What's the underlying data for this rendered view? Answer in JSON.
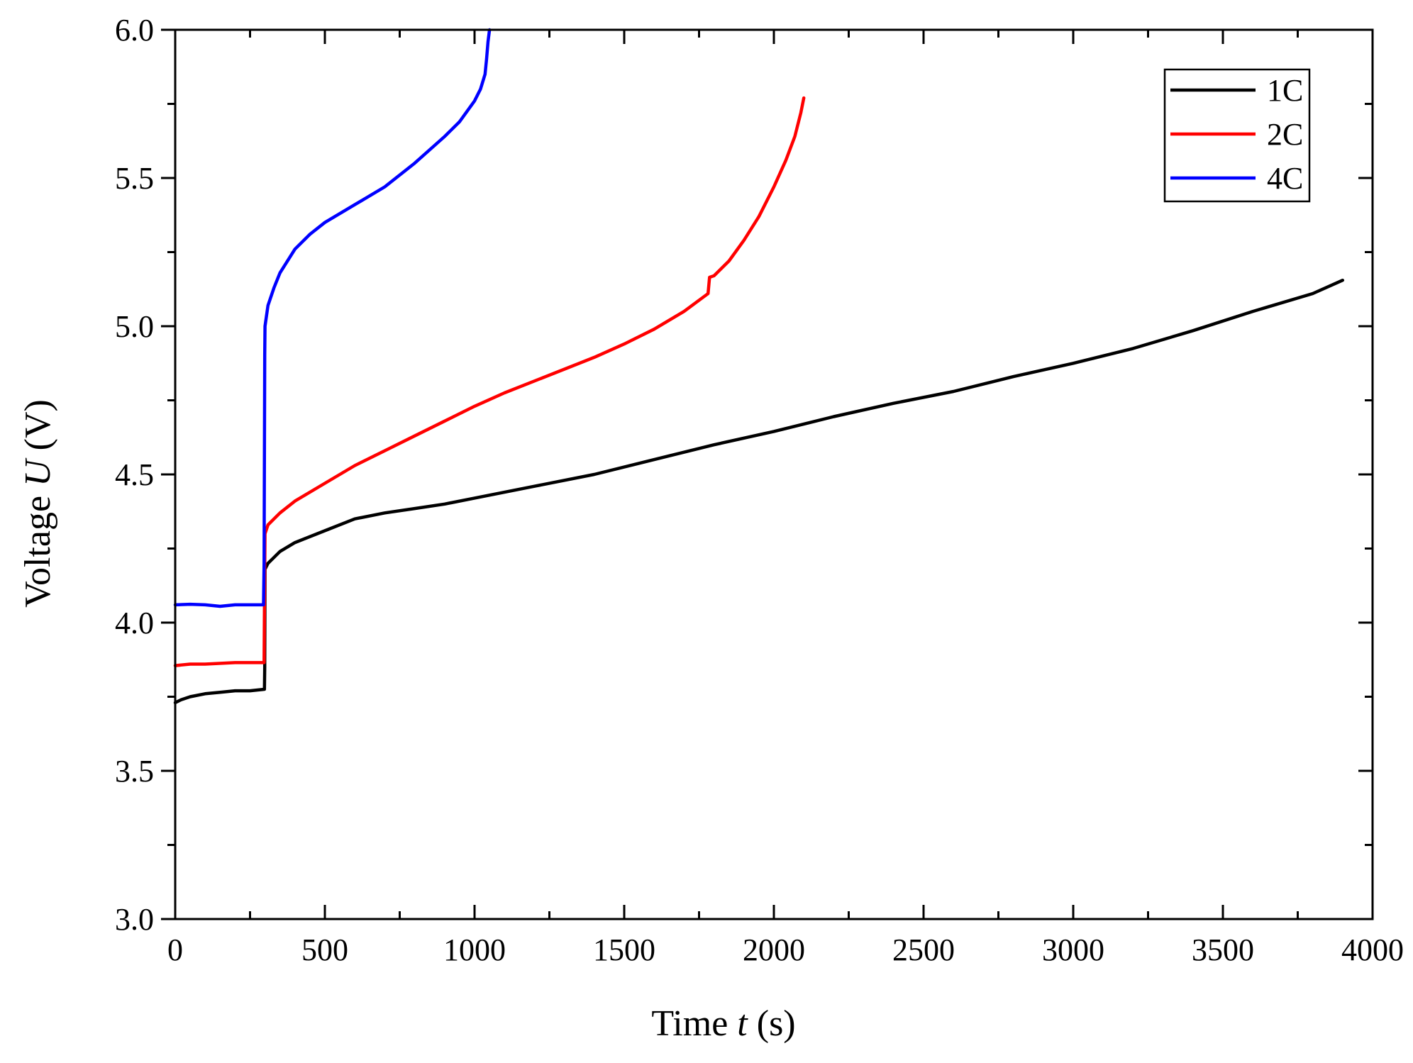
{
  "chart_data": {
    "type": "line",
    "title": "",
    "xlabel": {
      "prefix": "Time ",
      "var": "t",
      "suffix": " (s)"
    },
    "ylabel": {
      "prefix": "Voltage ",
      "var": "U",
      "suffix": " (V)"
    },
    "xlim": [
      0,
      4000
    ],
    "ylim": [
      3.0,
      6.0
    ],
    "xticks": [
      0,
      500,
      1000,
      1500,
      2000,
      2500,
      3000,
      3500,
      4000
    ],
    "xtick_labels": [
      "0",
      "500",
      "1000",
      "1500",
      "2000",
      "2500",
      "3000",
      "3500",
      "4000"
    ],
    "yticks": [
      3.0,
      3.5,
      4.0,
      4.5,
      5.0,
      5.5,
      6.0
    ],
    "ytick_labels": [
      "3.0",
      "3.5",
      "4.0",
      "4.5",
      "5.0",
      "5.5",
      "6.0"
    ],
    "grid": false,
    "legend_position": "top-right",
    "series": [
      {
        "name": "1C",
        "color": "#000000",
        "x": [
          0,
          20,
          50,
          100,
          150,
          200,
          250,
          298,
          299,
          300,
          310,
          350,
          400,
          500,
          600,
          700,
          800,
          900,
          1000,
          1200,
          1400,
          1600,
          1800,
          2000,
          2200,
          2400,
          2600,
          2800,
          3000,
          3200,
          3400,
          3600,
          3800,
          3900
        ],
        "y": [
          3.73,
          3.74,
          3.75,
          3.76,
          3.765,
          3.77,
          3.77,
          3.775,
          3.85,
          4.18,
          4.2,
          4.24,
          4.27,
          4.31,
          4.35,
          4.37,
          4.385,
          4.4,
          4.42,
          4.46,
          4.5,
          4.55,
          4.6,
          4.645,
          4.695,
          4.74,
          4.78,
          4.83,
          4.875,
          4.925,
          4.985,
          5.05,
          5.11,
          5.155
        ]
      },
      {
        "name": "2C",
        "color": "#ff0000",
        "x": [
          0,
          50,
          100,
          200,
          297,
          298,
          300,
          310,
          350,
          400,
          500,
          600,
          700,
          800,
          900,
          1000,
          1100,
          1200,
          1300,
          1400,
          1500,
          1600,
          1700,
          1780,
          1785,
          1800,
          1850,
          1900,
          1950,
          2000,
          2040,
          2070,
          2090,
          2100
        ],
        "y": [
          3.855,
          3.86,
          3.86,
          3.865,
          3.865,
          4.05,
          4.3,
          4.33,
          4.37,
          4.41,
          4.47,
          4.53,
          4.58,
          4.63,
          4.68,
          4.73,
          4.775,
          4.815,
          4.855,
          4.895,
          4.94,
          4.99,
          5.05,
          5.11,
          5.165,
          5.17,
          5.22,
          5.29,
          5.37,
          5.47,
          5.56,
          5.64,
          5.72,
          5.77
        ]
      },
      {
        "name": "4C",
        "color": "#0000ff",
        "x": [
          0,
          50,
          100,
          150,
          200,
          250,
          295,
          297,
          299,
          300,
          310,
          330,
          350,
          400,
          450,
          500,
          600,
          700,
          800,
          900,
          950,
          1000,
          1020,
          1035,
          1040,
          1045,
          1050
        ],
        "y": [
          4.06,
          4.062,
          4.06,
          4.055,
          4.06,
          4.06,
          4.06,
          4.2,
          4.9,
          5.0,
          5.07,
          5.13,
          5.18,
          5.26,
          5.31,
          5.35,
          5.41,
          5.47,
          5.55,
          5.64,
          5.69,
          5.76,
          5.8,
          5.85,
          5.9,
          5.96,
          6.0
        ]
      }
    ]
  }
}
